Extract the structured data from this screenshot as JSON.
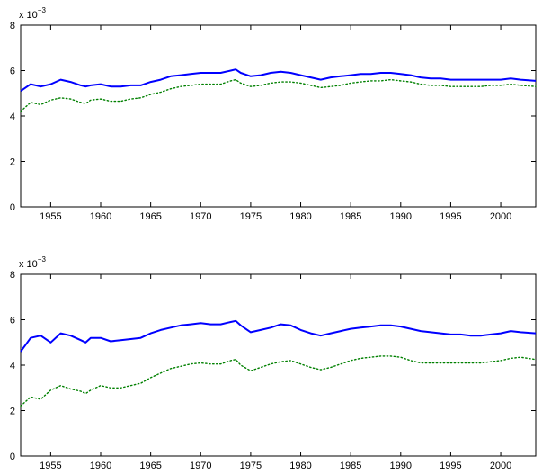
{
  "chart_data": [
    {
      "type": "line",
      "title": "",
      "xlabel": "",
      "ylabel": "",
      "y_multiplier_label": {
        "prefix": "x 10",
        "exponent": "−3"
      },
      "xlim": [
        1952,
        2003.5
      ],
      "ylim": [
        0,
        8
      ],
      "x_ticks": [
        1955,
        1960,
        1965,
        1970,
        1975,
        1980,
        1985,
        1990,
        1995,
        2000
      ],
      "y_ticks": [
        0,
        2,
        4,
        6,
        8
      ],
      "grid": false,
      "series": [
        {
          "style": "solid",
          "color": "#0000ff",
          "x": [
            1952,
            1953,
            1954,
            1955,
            1956,
            1957,
            1958,
            1958.5,
            1959,
            1960,
            1961,
            1962,
            1963,
            1964,
            1965,
            1966,
            1967,
            1968,
            1969,
            1970,
            1971,
            1972,
            1973,
            1973.5,
            1974,
            1975,
            1976,
            1977,
            1978,
            1979,
            1980,
            1981,
            1982,
            1983,
            1984,
            1985,
            1986,
            1987,
            1988,
            1989,
            1990,
            1991,
            1992,
            1993,
            1994,
            1995,
            1996,
            1997,
            1998,
            1999,
            2000,
            2001,
            2002,
            2003.5
          ],
          "y": [
            5.1,
            5.4,
            5.3,
            5.4,
            5.6,
            5.5,
            5.35,
            5.3,
            5.35,
            5.4,
            5.3,
            5.3,
            5.35,
            5.35,
            5.5,
            5.6,
            5.75,
            5.8,
            5.85,
            5.9,
            5.9,
            5.9,
            6.0,
            6.05,
            5.9,
            5.75,
            5.8,
            5.9,
            5.95,
            5.9,
            5.8,
            5.7,
            5.6,
            5.7,
            5.75,
            5.8,
            5.85,
            5.85,
            5.9,
            5.9,
            5.85,
            5.8,
            5.7,
            5.65,
            5.65,
            5.6,
            5.6,
            5.6,
            5.6,
            5.6,
            5.6,
            5.65,
            5.6,
            5.55
          ]
        },
        {
          "style": "dotted",
          "color": "#008000",
          "x": [
            1952,
            1953,
            1954,
            1955,
            1956,
            1957,
            1958,
            1958.5,
            1959,
            1960,
            1961,
            1962,
            1963,
            1964,
            1965,
            1966,
            1967,
            1968,
            1969,
            1970,
            1971,
            1972,
            1973,
            1973.5,
            1974,
            1975,
            1976,
            1977,
            1978,
            1979,
            1980,
            1981,
            1982,
            1983,
            1984,
            1985,
            1986,
            1987,
            1988,
            1989,
            1990,
            1991,
            1992,
            1993,
            1994,
            1995,
            1996,
            1997,
            1998,
            1999,
            2000,
            2001,
            2002,
            2003.5
          ],
          "y": [
            4.2,
            4.6,
            4.5,
            4.7,
            4.8,
            4.75,
            4.6,
            4.55,
            4.7,
            4.75,
            4.65,
            4.65,
            4.75,
            4.8,
            4.95,
            5.05,
            5.2,
            5.3,
            5.35,
            5.4,
            5.4,
            5.4,
            5.55,
            5.6,
            5.45,
            5.3,
            5.35,
            5.45,
            5.5,
            5.5,
            5.45,
            5.35,
            5.25,
            5.3,
            5.35,
            5.45,
            5.5,
            5.55,
            5.55,
            5.6,
            5.55,
            5.5,
            5.4,
            5.35,
            5.35,
            5.3,
            5.3,
            5.3,
            5.3,
            5.35,
            5.35,
            5.4,
            5.35,
            5.3
          ]
        }
      ]
    },
    {
      "type": "line",
      "title": "",
      "xlabel": "",
      "ylabel": "",
      "y_multiplier_label": {
        "prefix": "x 10",
        "exponent": "−3"
      },
      "xlim": [
        1952,
        2003.5
      ],
      "ylim": [
        0,
        8
      ],
      "x_ticks": [
        1955,
        1960,
        1965,
        1970,
        1975,
        1980,
        1985,
        1990,
        1995,
        2000
      ],
      "y_ticks": [
        0,
        2,
        4,
        6,
        8
      ],
      "grid": false,
      "series": [
        {
          "style": "solid",
          "color": "#0000ff",
          "x": [
            1952,
            1952.5,
            1953,
            1954,
            1955,
            1956,
            1957,
            1958,
            1958.5,
            1959,
            1960,
            1961,
            1962,
            1963,
            1964,
            1965,
            1966,
            1967,
            1968,
            1969,
            1970,
            1971,
            1972,
            1973,
            1973.5,
            1974,
            1975,
            1976,
            1977,
            1978,
            1979,
            1980,
            1981,
            1982,
            1983,
            1984,
            1985,
            1986,
            1987,
            1988,
            1989,
            1990,
            1991,
            1992,
            1993,
            1994,
            1995,
            1996,
            1997,
            1998,
            1999,
            2000,
            2001,
            2002,
            2003.5
          ],
          "y": [
            4.6,
            4.9,
            5.2,
            5.3,
            5.0,
            5.4,
            5.3,
            5.1,
            5.0,
            5.2,
            5.2,
            5.05,
            5.1,
            5.15,
            5.2,
            5.4,
            5.55,
            5.65,
            5.75,
            5.8,
            5.85,
            5.8,
            5.8,
            5.9,
            5.95,
            5.75,
            5.45,
            5.55,
            5.65,
            5.8,
            5.75,
            5.55,
            5.4,
            5.3,
            5.4,
            5.5,
            5.6,
            5.65,
            5.7,
            5.75,
            5.75,
            5.7,
            5.6,
            5.5,
            5.45,
            5.4,
            5.35,
            5.35,
            5.3,
            5.3,
            5.35,
            5.4,
            5.5,
            5.45,
            5.4
          ]
        },
        {
          "style": "dotted",
          "color": "#008000",
          "x": [
            1952,
            1953,
            1954,
            1955,
            1956,
            1957,
            1958,
            1958.5,
            1959,
            1960,
            1961,
            1962,
            1963,
            1964,
            1965,
            1966,
            1967,
            1968,
            1969,
            1970,
            1971,
            1972,
            1973,
            1973.5,
            1974,
            1975,
            1976,
            1977,
            1978,
            1979,
            1980,
            1981,
            1982,
            1983,
            1984,
            1985,
            1986,
            1987,
            1988,
            1989,
            1990,
            1991,
            1992,
            1993,
            1994,
            1995,
            1996,
            1997,
            1998,
            1999,
            2000,
            2001,
            2002,
            2003.5
          ],
          "y": [
            2.2,
            2.6,
            2.5,
            2.9,
            3.1,
            2.95,
            2.85,
            2.75,
            2.9,
            3.1,
            3.0,
            3.0,
            3.1,
            3.2,
            3.45,
            3.65,
            3.85,
            3.95,
            4.05,
            4.1,
            4.05,
            4.05,
            4.2,
            4.25,
            4.0,
            3.75,
            3.9,
            4.05,
            4.15,
            4.2,
            4.05,
            3.9,
            3.8,
            3.9,
            4.05,
            4.2,
            4.3,
            4.35,
            4.4,
            4.4,
            4.35,
            4.2,
            4.1,
            4.1,
            4.1,
            4.1,
            4.1,
            4.1,
            4.1,
            4.15,
            4.2,
            4.3,
            4.35,
            4.25
          ]
        }
      ]
    }
  ]
}
